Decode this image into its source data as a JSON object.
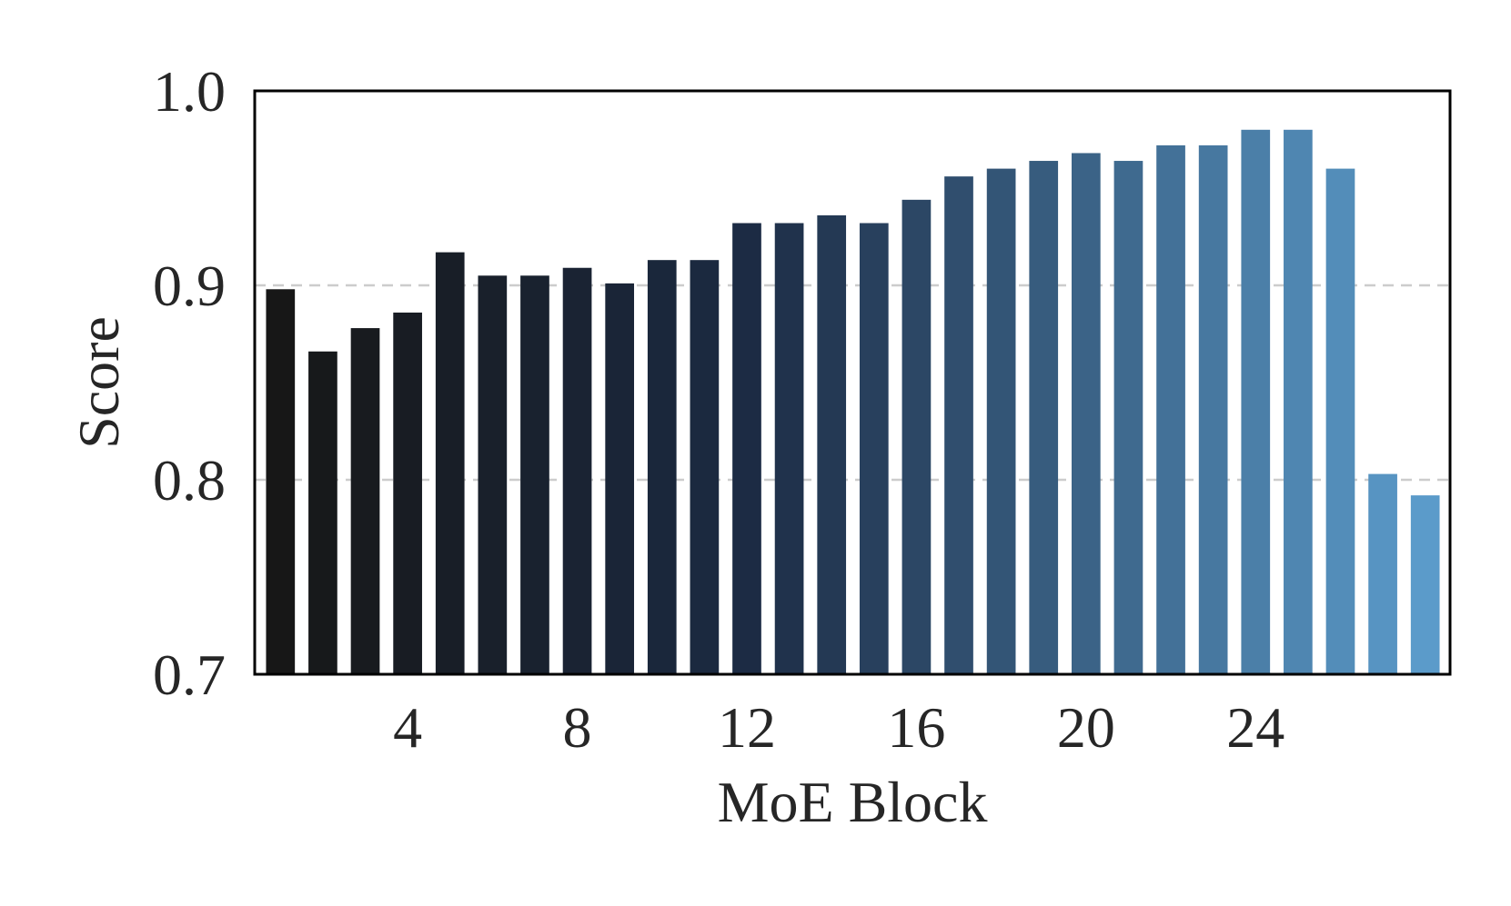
{
  "chart_data": {
    "type": "bar",
    "categories": [
      1,
      2,
      3,
      4,
      5,
      6,
      7,
      8,
      9,
      10,
      11,
      12,
      13,
      14,
      15,
      16,
      17,
      18,
      19,
      20,
      21,
      22,
      23,
      24,
      25,
      26,
      27,
      28
    ],
    "values": [
      0.898,
      0.866,
      0.878,
      0.886,
      0.917,
      0.905,
      0.905,
      0.909,
      0.901,
      0.913,
      0.913,
      0.932,
      0.932,
      0.936,
      0.932,
      0.944,
      0.956,
      0.96,
      0.964,
      0.968,
      0.964,
      0.972,
      0.972,
      0.98,
      0.98,
      0.96,
      0.803,
      0.792
    ],
    "xlabel": "MoE Block",
    "ylabel": "Score",
    "ylim": [
      0.7,
      1.0
    ],
    "xticks": [
      4,
      8,
      12,
      16,
      20,
      24
    ],
    "xtick_labels": [
      "4",
      "8",
      "12",
      "16",
      "20",
      "24"
    ],
    "yticks": [
      0.7,
      0.8,
      0.9,
      1.0
    ],
    "ytick_labels": [
      "0.7",
      "0.8",
      "0.9",
      "1.0"
    ],
    "grid": "horizontal dashed",
    "colors": {
      "start": "#171717",
      "mid": "#1b2a42",
      "end": "#5b9bca",
      "grid": "#cccccc",
      "frame": "#000000"
    }
  }
}
